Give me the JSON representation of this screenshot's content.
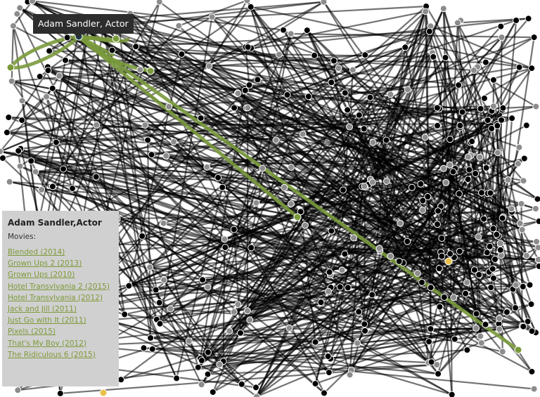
{
  "tooltip": {
    "text": "Adam Sandler, Actor"
  },
  "panel": {
    "title": "Adam Sandler,Actor",
    "subtitle": "Movies:",
    "movies": [
      "Blended  (2014)",
      "Grown Ups 2  (2013)",
      "Grown Ups  (2010)",
      "Hotel Transylvania 2  (2015)",
      "Hotel Transylvania  (2012)",
      "Jack and Jill  (2011)",
      "Just Go with It  (2011)",
      "Pixels  (2015)",
      "That's My Boy  (2012)",
      "The Ridiculous 6  (2015)"
    ]
  },
  "colors": {
    "edge": "#000000",
    "highlight_edge": "#7a9a3c",
    "actor_node": "#000000",
    "movie_node": "#8c8c8c",
    "selected_node": "#1b3a4b",
    "gold_node": "#e8c04a",
    "link": "#7e9a3a"
  }
}
